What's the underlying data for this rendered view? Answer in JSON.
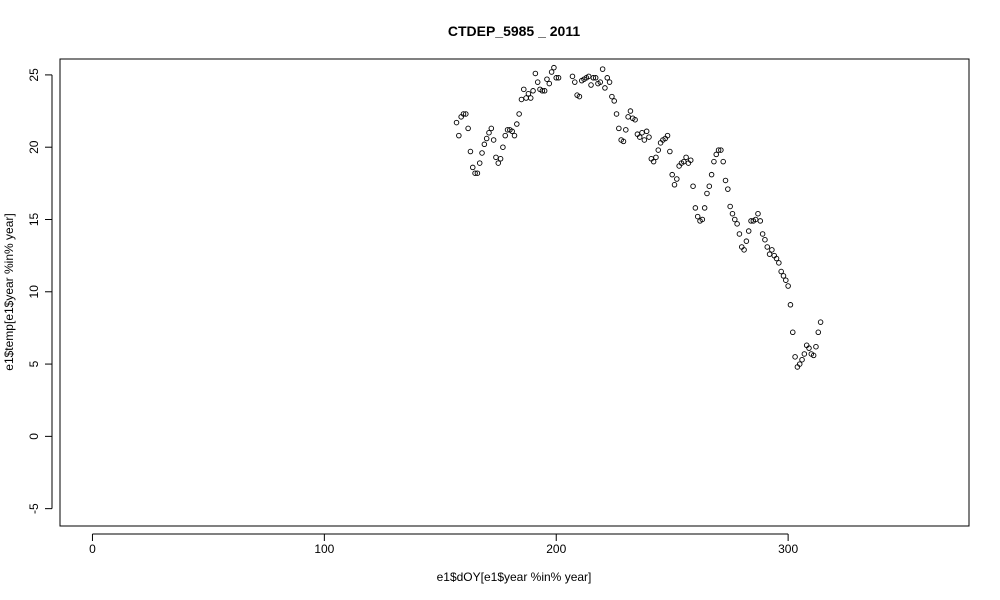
{
  "chart_data": {
    "type": "scatter",
    "title": "CTDEP_5985 _ 2011",
    "xlabel": "e1$dOY[e1$year %in% year]",
    "ylabel": "e1$temp[e1$year %in% year]",
    "xlim": [
      -14,
      378
    ],
    "ylim": [
      -6.2,
      26.1
    ],
    "x_ticks": [
      0,
      100,
      200,
      300
    ],
    "y_ticks": [
      -5,
      0,
      5,
      10,
      15,
      20,
      25
    ],
    "x_tick_labels": [
      "0",
      "100",
      "200",
      "300"
    ],
    "y_tick_labels": [
      "-5",
      "0",
      "5",
      "10",
      "15",
      "20",
      "25"
    ],
    "grid": false,
    "marker": "open-circle",
    "colors": {
      "points": "#000000",
      "axes": "#000000",
      "background": "#ffffff"
    },
    "x": [
      157,
      158,
      159,
      160,
      161,
      162,
      163,
      164,
      165,
      166,
      167,
      168,
      169,
      170,
      171,
      172,
      173,
      174,
      175,
      176,
      177,
      178,
      179,
      180,
      181,
      182,
      183,
      184,
      185,
      186,
      187,
      188,
      189,
      190,
      191,
      192,
      193,
      194,
      195,
      196,
      197,
      198,
      199,
      200,
      201,
      207,
      208,
      209,
      210,
      211,
      212,
      213,
      214,
      215,
      216,
      217,
      218,
      219,
      220,
      221,
      222,
      223,
      224,
      225,
      226,
      227,
      228,
      229,
      230,
      231,
      232,
      233,
      234,
      235,
      236,
      237,
      238,
      239,
      240,
      241,
      242,
      243,
      244,
      245,
      246,
      247,
      248,
      249,
      250,
      251,
      252,
      253,
      254,
      255,
      256,
      257,
      258,
      259,
      260,
      261,
      262,
      263,
      264,
      265,
      266,
      267,
      268,
      269,
      270,
      271,
      272,
      273,
      274,
      275,
      276,
      277,
      278,
      279,
      280,
      281,
      282,
      283,
      284,
      285,
      286,
      287,
      288,
      289,
      290,
      291,
      292,
      293,
      294,
      295,
      296,
      297,
      298,
      299,
      300,
      301,
      302,
      303,
      304,
      305,
      306,
      307,
      308,
      309,
      310,
      311,
      312,
      313,
      314
    ],
    "y": [
      21.7,
      20.8,
      22.1,
      22.3,
      22.3,
      21.3,
      19.7,
      18.6,
      18.2,
      18.2,
      18.9,
      19.6,
      20.2,
      20.6,
      21.0,
      21.3,
      20.5,
      19.3,
      18.9,
      19.2,
      20.0,
      20.8,
      21.2,
      21.2,
      21.1,
      20.8,
      21.6,
      22.3,
      23.3,
      24.0,
      23.4,
      23.7,
      23.4,
      23.9,
      25.1,
      24.5,
      24.0,
      23.9,
      23.9,
      24.7,
      24.4,
      25.2,
      25.5,
      24.8,
      24.8,
      24.9,
      24.5,
      23.6,
      23.5,
      24.6,
      24.7,
      24.8,
      24.9,
      24.3,
      24.8,
      24.8,
      24.4,
      24.5,
      25.4,
      24.1,
      24.8,
      24.5,
      23.5,
      23.2,
      22.3,
      21.3,
      20.5,
      20.4,
      21.2,
      22.1,
      22.5,
      22.0,
      21.9,
      20.9,
      20.7,
      21.0,
      20.5,
      21.1,
      20.7,
      19.2,
      19.0,
      19.3,
      19.8,
      20.3,
      20.5,
      20.6,
      20.8,
      19.7,
      18.1,
      17.4,
      17.8,
      18.7,
      18.9,
      19.0,
      19.3,
      18.9,
      19.1,
      17.3,
      15.8,
      15.2,
      14.9,
      15.0,
      15.8,
      16.8,
      17.3,
      18.1,
      19.0,
      19.5,
      19.8,
      19.8,
      19.0,
      17.7,
      17.1,
      15.9,
      15.4,
      15.0,
      14.7,
      14.0,
      13.1,
      12.9,
      13.5,
      14.2,
      14.9,
      14.9,
      15.0,
      15.4,
      14.9,
      14.0,
      13.6,
      13.1,
      12.6,
      12.9,
      12.5,
      12.3,
      12.0,
      11.4,
      11.1,
      10.8,
      10.4,
      9.1,
      7.2,
      5.5,
      4.8,
      5.0,
      5.3,
      5.7,
      6.3,
      6.1,
      5.7,
      5.6,
      6.2,
      7.2,
      7.9
    ]
  }
}
